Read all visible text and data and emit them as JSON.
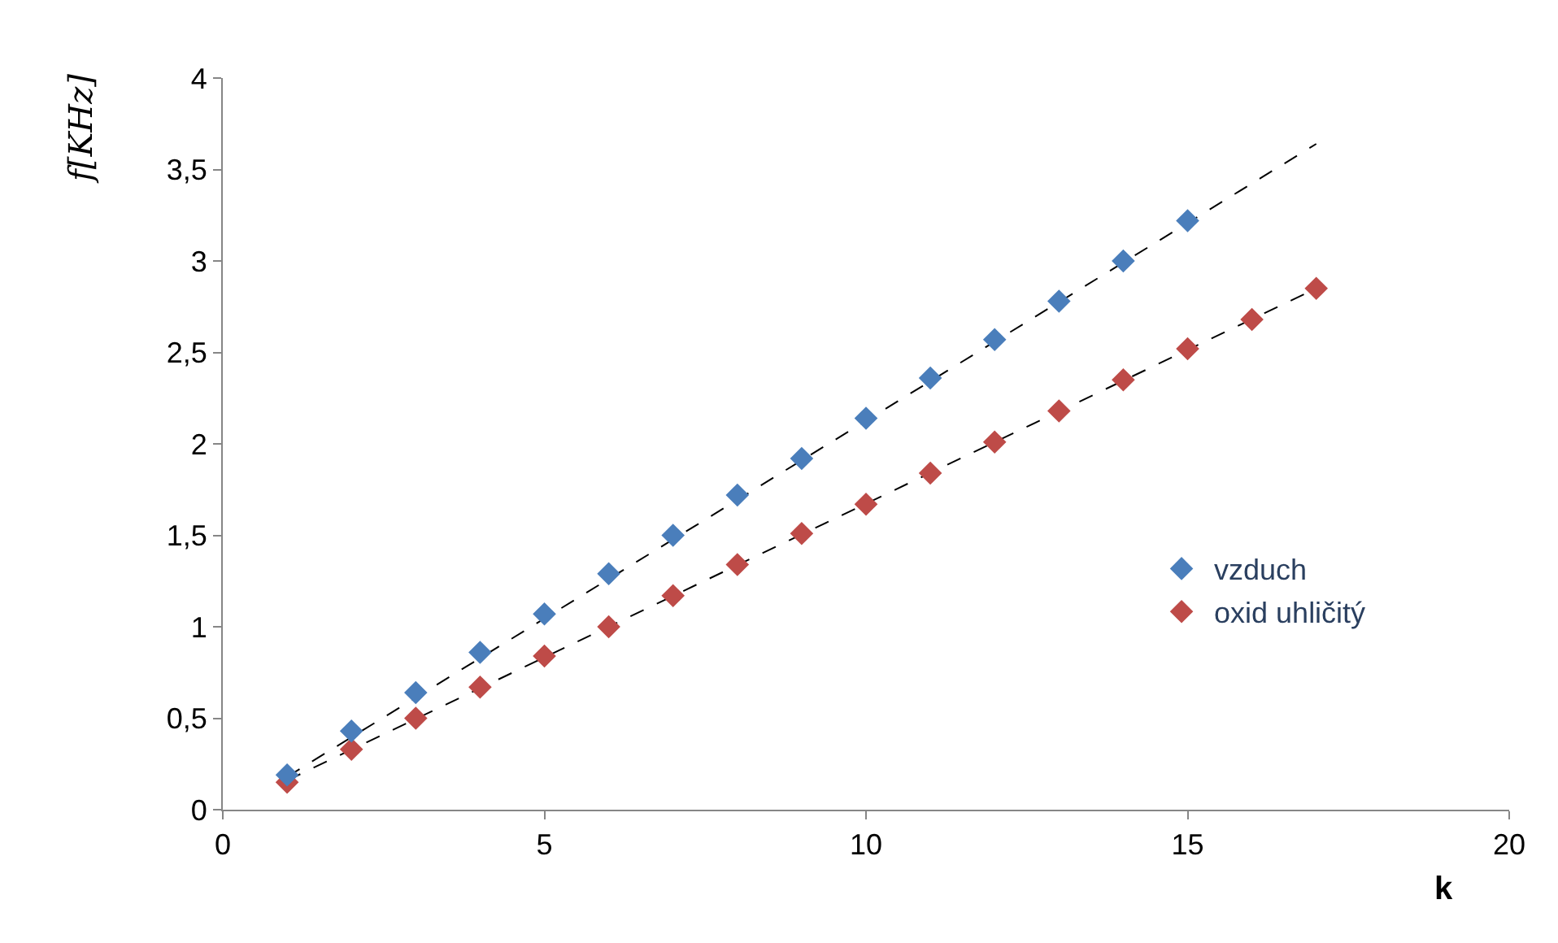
{
  "chart_data": {
    "type": "scatter",
    "ylabel": "f[KHz]",
    "xlabel": "k",
    "xlim": [
      0,
      20
    ],
    "xticks": [
      0,
      5,
      10,
      15,
      20
    ],
    "ylim": [
      0,
      4
    ],
    "yticks": [
      0,
      {
        "value": 0.5,
        "label": "0,5"
      },
      1,
      {
        "value": 1.5,
        "label": "1,5"
      },
      2,
      {
        "value": 2.5,
        "label": "2,5"
      },
      3,
      {
        "value": 3.5,
        "label": "3,5"
      },
      4
    ],
    "grid": false,
    "legend": "right",
    "marker": "diamond",
    "series": [
      {
        "name": "vzduch",
        "color": "#4a7ebb",
        "x": [
          1,
          2,
          3,
          4,
          5,
          6,
          7,
          8,
          9,
          10,
          11,
          12,
          13,
          14,
          15
        ],
        "values": [
          0.19,
          0.43,
          0.64,
          0.86,
          1.07,
          1.29,
          1.5,
          1.72,
          1.92,
          2.14,
          2.36,
          2.57,
          2.78,
          3.0,
          3.22
        ]
      },
      {
        "name": "oxid uhličitý",
        "color": "#be4b48",
        "x": [
          1,
          2,
          3,
          4,
          5,
          6,
          7,
          8,
          9,
          10,
          11,
          12,
          13,
          14,
          15,
          16,
          17
        ],
        "values": [
          0.15,
          0.33,
          0.5,
          0.67,
          0.84,
          1.0,
          1.17,
          1.34,
          1.51,
          1.67,
          1.84,
          2.01,
          2.18,
          2.35,
          2.52,
          2.68,
          2.85
        ]
      },
      {
        "type": "line",
        "color": "#000000",
        "line_style": "dashed",
        "marker": "none",
        "x": [
          1,
          17
        ],
        "values": [
          0.18,
          3.64
        ]
      },
      {
        "type": "line",
        "color": "#000000",
        "line_style": "dashed",
        "marker": "none",
        "x": [
          1,
          17
        ],
        "values": [
          0.16,
          2.85
        ]
      }
    ]
  }
}
